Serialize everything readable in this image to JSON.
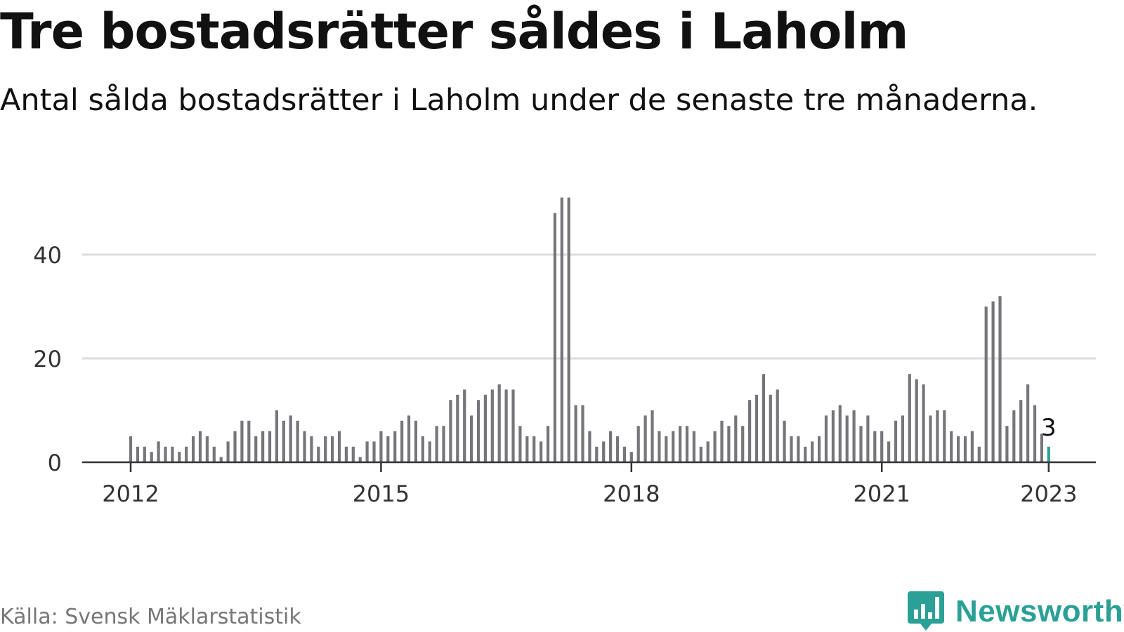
{
  "title": "Tre bostadsrätter såldes i Laholm",
  "subtitle": "Antal sålda bostadsrätter i Laholm under de senaste tre månaderna.",
  "source": "Källa: Svensk Mäklarstatistik",
  "brand": "Newsworthy",
  "colors": {
    "bar": "#76757a",
    "highlight": "#2aa096",
    "grid": "#dddddd",
    "axis": "#333333",
    "brand": "#2aa096"
  },
  "icons": {
    "logo": "newsworthy-chart-bubble-icon"
  },
  "chart_data": {
    "type": "bar",
    "x_start": "2012-01",
    "interval": "month",
    "values": [
      5,
      3,
      3,
      2,
      4,
      3,
      3,
      2,
      3,
      5,
      6,
      5,
      3,
      1,
      4,
      6,
      8,
      8,
      5,
      6,
      6,
      10,
      8,
      9,
      8,
      6,
      5,
      3,
      5,
      5,
      6,
      3,
      3,
      1,
      4,
      4,
      6,
      5,
      6,
      8,
      9,
      8,
      5,
      4,
      7,
      7,
      12,
      13,
      14,
      9,
      12,
      13,
      14,
      15,
      14,
      14,
      7,
      5,
      5,
      4,
      7,
      48,
      51,
      51,
      11,
      11,
      6,
      3,
      4,
      6,
      5,
      3,
      2,
      7,
      9,
      10,
      6,
      5,
      6,
      7,
      7,
      6,
      3,
      4,
      6,
      8,
      7,
      9,
      7,
      12,
      13,
      17,
      13,
      14,
      8,
      5,
      5,
      3,
      4,
      5,
      9,
      10,
      11,
      9,
      10,
      7,
      9,
      6,
      6,
      4,
      8,
      9,
      17,
      16,
      15,
      9,
      10,
      10,
      6,
      5,
      5,
      6,
      3,
      30,
      31,
      32,
      7,
      10,
      12,
      15,
      11,
      5.5,
      3
    ],
    "highlight_index": 132,
    "annotation": {
      "index": 132,
      "text": "3"
    },
    "y_ticks": [
      0,
      20,
      40
    ],
    "x_ticks": [
      {
        "label": "2012",
        "index": 0
      },
      {
        "label": "2015",
        "index": 36
      },
      {
        "label": "2018",
        "index": 72
      },
      {
        "label": "2021",
        "index": 108
      },
      {
        "label": "2023",
        "index": 132
      }
    ],
    "ylim": [
      0,
      52
    ],
    "grid": true,
    "legend": "none"
  }
}
